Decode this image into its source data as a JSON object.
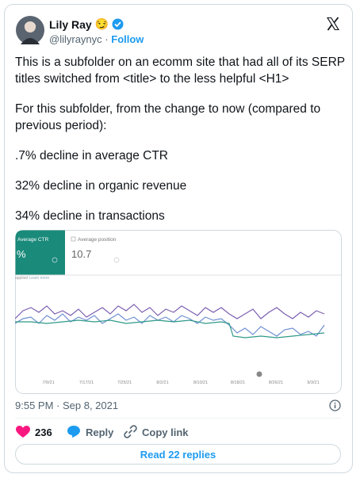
{
  "author": {
    "name": "Lily Ray",
    "emoji": "😏",
    "handle": "@lilyraynyc",
    "separator": "·",
    "follow": "Follow"
  },
  "tweet": {
    "paragraphs": [
      "This is a subfolder on an ecomm site that had all of its SERP titles switched from <title> to the less helpful <H1>",
      "For this subfolder, from the change to now (compared to previous period):",
      ".7% decline in average CTR",
      "32% decline in organic revenue",
      "34% decline in transactions"
    ]
  },
  "image": {
    "metric_1": {
      "label": "Average CTR",
      "value": "%"
    },
    "metric_2": {
      "label": "Average position",
      "value": "10.7"
    },
    "filter_note": "applied",
    "learn_more": "Learn more",
    "x_labels": [
      "7/9/21",
      "7/17/21",
      "7/25/21",
      "8/2/21",
      "8/10/21",
      "8/18/21",
      "8/26/21",
      "9/3/21"
    ]
  },
  "timestamp": "9:55 PM · Sep 8, 2021",
  "actions": {
    "likes": 236,
    "reply": "Reply",
    "copy_link": "Copy link"
  },
  "read_replies": "Read 22 replies"
}
